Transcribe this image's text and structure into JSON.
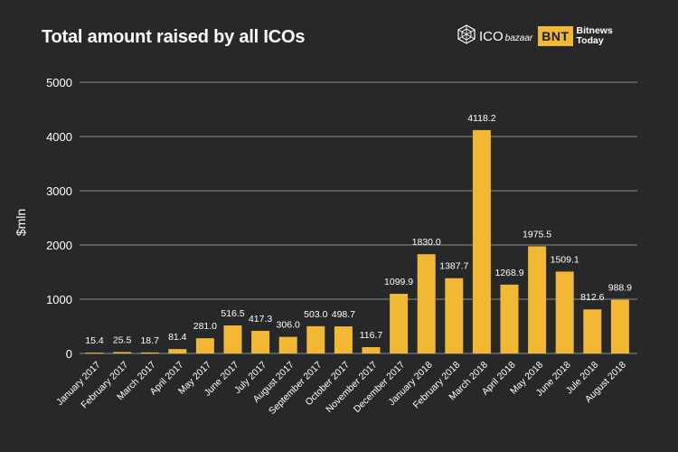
{
  "header": {
    "title": "Total amount raised by all ICOs",
    "logo_ico": "ICO",
    "logo_ico_sub": "bazaar",
    "logo_bnt": "BNT",
    "logo_bnt_line1": "Bitnews",
    "logo_bnt_line2": "Today"
  },
  "colors": {
    "background": "#262829",
    "bar": "#f2b733",
    "grid": "#8a8c8e",
    "text": "#ffffff"
  },
  "chart_data": {
    "type": "bar",
    "title": "Total amount raised by all ICOs",
    "xlabel": "",
    "ylabel": "$mln",
    "ylim": [
      0,
      5000
    ],
    "yticks": [
      0,
      1000,
      2000,
      3000,
      4000,
      5000
    ],
    "grid": true,
    "categories": [
      "January 2017",
      "February 2017",
      "March 2017",
      "April 2017",
      "May 2017",
      "June 2017",
      "July 2017",
      "August 2017",
      "September 2017",
      "October 2017",
      "November 2017",
      "December 2017",
      "January 2018",
      "February 2018",
      "March 2018",
      "April 2018",
      "May 2018",
      "June 2018",
      "Jule 2018",
      "August 2018"
    ],
    "values": [
      15.4,
      25.5,
      18.7,
      81.4,
      281.0,
      516.5,
      417.3,
      306.0,
      503.0,
      498.7,
      116.7,
      1099.9,
      1830.0,
      1387.7,
      4118.2,
      1268.9,
      1975.5,
      1509.1,
      812.6,
      988.9
    ],
    "value_labels": [
      "15.4",
      "25.5",
      "18.7",
      "81.4",
      "281.0",
      "516.5",
      "417.3",
      "306.0",
      "503.0",
      "498.7",
      "116.7",
      "1099.9",
      "1830.0",
      "1387.7",
      "4118.2",
      "1268.9",
      "1975.5",
      "1509.1",
      "812.6",
      "988.9"
    ]
  }
}
